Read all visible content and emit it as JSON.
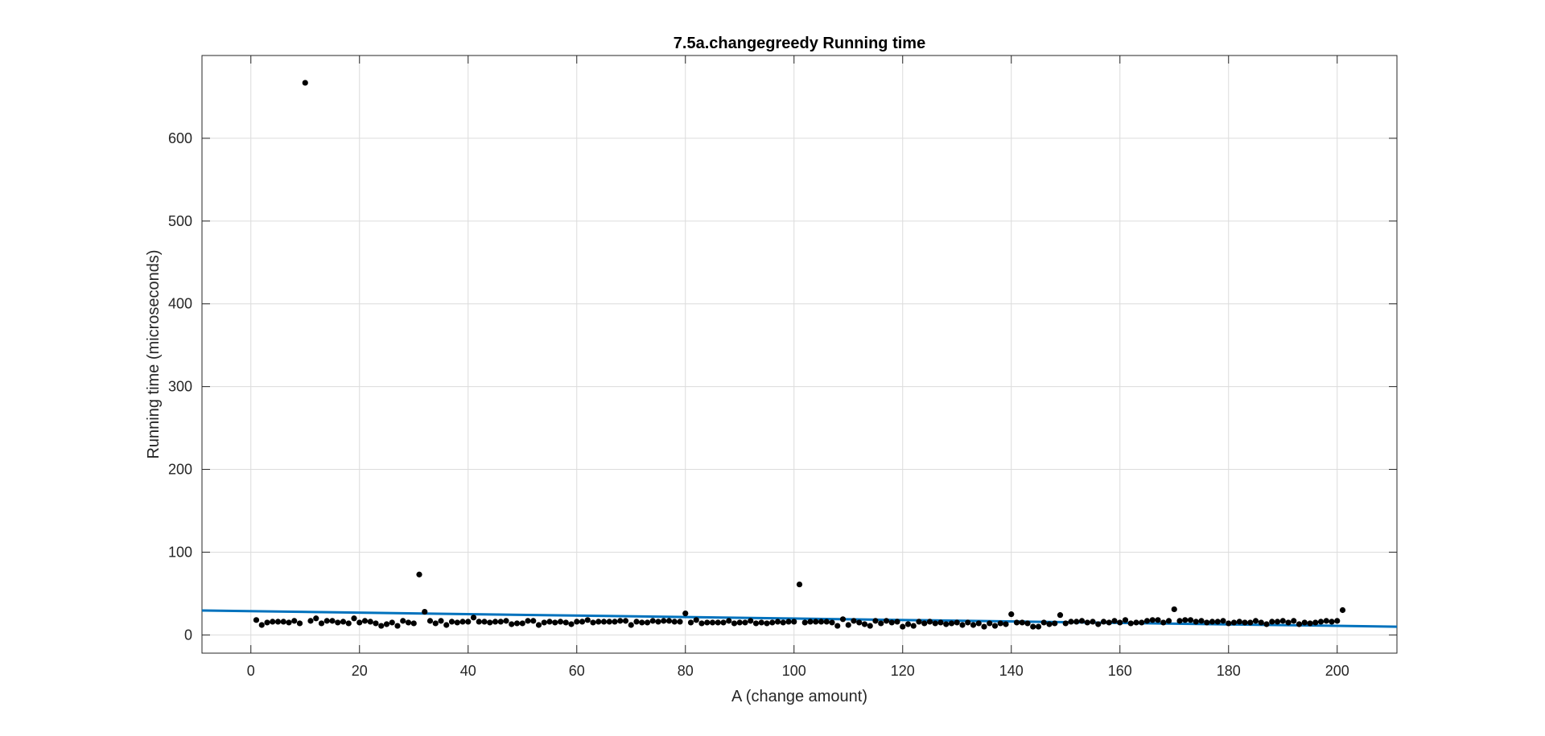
{
  "chart_data": {
    "type": "scatter",
    "title": "7.5a.changegreedy Running time",
    "xlabel": "A (change amount)",
    "ylabel": "Running time (microseconds)",
    "xlim": [
      -9,
      211
    ],
    "ylim": [
      -22,
      700
    ],
    "xticks": [
      0,
      20,
      40,
      60,
      80,
      100,
      120,
      140,
      160,
      180,
      200
    ],
    "yticks": [
      0,
      100,
      200,
      300,
      400,
      500,
      600
    ],
    "grid": true,
    "legend": "none",
    "colors": {
      "points": "#000000",
      "fit_line": "#0072BD",
      "grid": "#dcdcdc",
      "axes": "#262626"
    },
    "series": [
      {
        "kind": "points",
        "x": [
          1,
          2,
          3,
          4,
          5,
          6,
          7,
          8,
          9,
          10,
          11,
          12,
          13,
          14,
          15,
          16,
          17,
          18,
          19,
          20,
          21,
          22,
          23,
          24,
          25,
          26,
          27,
          28,
          29,
          30,
          31,
          32,
          33,
          34,
          35,
          36,
          37,
          38,
          39,
          40,
          41,
          42,
          43,
          44,
          45,
          46,
          47,
          48,
          49,
          50,
          51,
          52,
          53,
          54,
          55,
          56,
          57,
          58,
          59,
          60,
          61,
          62,
          63,
          64,
          65,
          66,
          67,
          68,
          69,
          70,
          71,
          72,
          73,
          74,
          75,
          76,
          77,
          78,
          79,
          80,
          81,
          82,
          83,
          84,
          85,
          86,
          87,
          88,
          89,
          90,
          91,
          92,
          93,
          94,
          95,
          96,
          97,
          98,
          99,
          100,
          101,
          102,
          103,
          104,
          105,
          106,
          107,
          108,
          109,
          110,
          111,
          112,
          113,
          114,
          115,
          116,
          117,
          118,
          119,
          120,
          121,
          122,
          123,
          124,
          125,
          126,
          127,
          128,
          129,
          130,
          131,
          132,
          133,
          134,
          135,
          136,
          137,
          138,
          139,
          140,
          141,
          142,
          143,
          144,
          145,
          146,
          147,
          148,
          149,
          150,
          151,
          152,
          153,
          154,
          155,
          156,
          157,
          158,
          159,
          160,
          161,
          162,
          163,
          164,
          165,
          166,
          167,
          168,
          169,
          170,
          171,
          172,
          173,
          174,
          175,
          176,
          177,
          178,
          179,
          180,
          181,
          182,
          183,
          184,
          185,
          186,
          187,
          188,
          189,
          190,
          191,
          192,
          193,
          194,
          195,
          196,
          197,
          198,
          199,
          200,
          201
        ],
        "y": [
          18,
          12,
          15,
          16,
          16,
          16,
          15,
          17,
          14,
          667,
          17,
          20,
          14,
          17,
          17,
          15,
          16,
          14,
          20,
          15,
          17,
          16,
          14,
          11,
          13,
          15,
          11,
          17,
          15,
          14,
          73,
          28,
          17,
          14,
          17,
          12,
          16,
          15,
          16,
          16,
          21,
          16,
          16,
          15,
          16,
          16,
          17,
          13,
          14,
          14,
          17,
          17,
          12,
          15,
          16,
          15,
          16,
          15,
          13,
          16,
          16,
          18,
          15,
          16,
          16,
          16,
          16,
          17,
          17,
          12,
          16,
          15,
          15,
          17,
          16,
          17,
          17,
          16,
          16,
          26,
          15,
          18,
          14,
          15,
          15,
          15,
          15,
          17,
          14,
          15,
          15,
          17,
          14,
          15,
          14,
          15,
          16,
          15,
          16,
          16,
          61,
          15,
          16,
          16,
          16,
          16,
          15,
          11,
          19,
          12,
          17,
          15,
          13,
          11,
          17,
          14,
          17,
          15,
          16,
          10,
          13,
          11,
          16,
          14,
          16,
          14,
          15,
          13,
          14,
          15,
          12,
          15,
          12,
          14,
          10,
          14,
          11,
          14,
          13,
          25,
          15,
          15,
          14,
          10,
          10,
          15,
          13,
          14,
          24,
          14,
          16,
          16,
          17,
          15,
          16,
          13,
          16,
          15,
          17,
          15,
          18,
          14,
          15,
          15,
          17,
          18,
          18,
          15,
          17,
          31,
          17,
          18,
          18,
          16,
          17,
          15,
          16,
          16,
          17,
          14,
          15,
          16,
          15,
          15,
          17,
          15,
          13,
          16,
          16,
          17,
          15,
          17,
          13,
          15,
          14,
          15,
          16,
          17,
          16,
          17,
          30
        ]
      },
      {
        "kind": "fit-line",
        "x": [
          -9,
          211
        ],
        "y": [
          29.5,
          10.0
        ]
      }
    ]
  }
}
